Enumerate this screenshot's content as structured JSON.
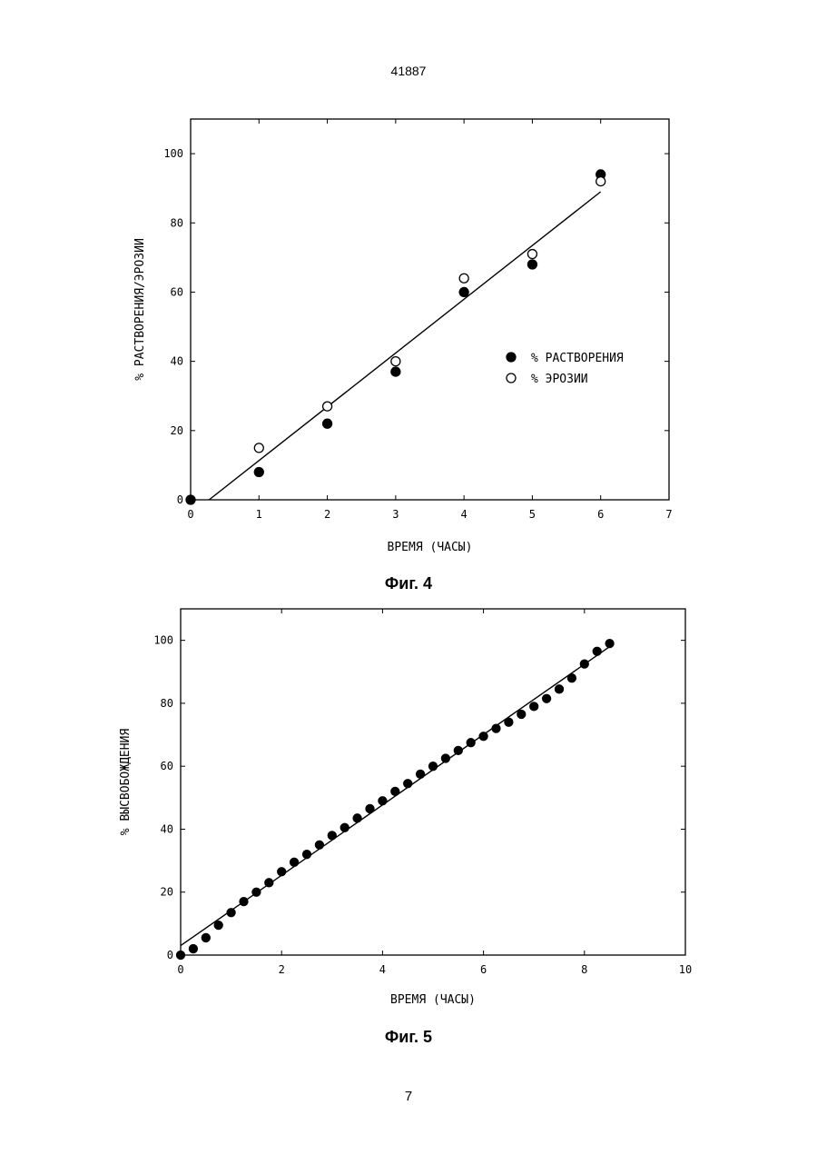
{
  "page": {
    "header": "41887",
    "number": "7"
  },
  "figures": [
    {
      "caption": "Фиг. 4"
    },
    {
      "caption": "Фиг. 5"
    }
  ],
  "chart_data": [
    {
      "type": "scatter",
      "title": "",
      "xlabel": "ВРЕМЯ (ЧАСЫ)",
      "ylabel": "% РАСТВОРЕНИЯ/ЭРОЗИИ",
      "xlim": [
        0,
        7
      ],
      "ylim": [
        0,
        110
      ],
      "x_ticks": [
        0,
        1,
        2,
        3,
        4,
        5,
        6,
        7
      ],
      "y_ticks": [
        0,
        20,
        40,
        60,
        80,
        100
      ],
      "x_tick_labels": [
        "0",
        "1",
        "2",
        "3",
        "4",
        "5",
        "6",
        "7"
      ],
      "y_tick_labels": [
        "0",
        "20",
        "40",
        "60",
        "80",
        "100"
      ],
      "grid": false,
      "legend_position": "right-middle",
      "series": [
        {
          "name": "% РАСТВОРЕНИЯ",
          "marker": "filled-circle",
          "x": [
            0,
            1,
            2,
            3,
            4,
            5,
            6
          ],
          "y": [
            0,
            8,
            22,
            37,
            60,
            68,
            94
          ]
        },
        {
          "name": "% ЭРОЗИИ",
          "marker": "open-circle",
          "x": [
            1,
            2,
            3,
            4,
            5,
            6
          ],
          "y": [
            15,
            27,
            40,
            64,
            71,
            92
          ]
        }
      ],
      "fit_line": {
        "x": [
          0.27,
          6
        ],
        "y": [
          0,
          89
        ]
      }
    },
    {
      "type": "scatter",
      "title": "",
      "xlabel": "ВРЕМЯ (ЧАСЫ)",
      "ylabel": "% ВЫСВОБОЖДЕНИЯ",
      "xlim": [
        0,
        10
      ],
      "ylim": [
        0,
        110
      ],
      "x_ticks": [
        0,
        2,
        4,
        6,
        8,
        10
      ],
      "y_ticks": [
        0,
        20,
        40,
        60,
        80,
        100
      ],
      "x_tick_labels": [
        "0",
        "2",
        "4",
        "6",
        "8",
        "10"
      ],
      "y_tick_labels": [
        "0",
        "20",
        "40",
        "60",
        "80",
        "100"
      ],
      "grid": false,
      "series": [
        {
          "name": "",
          "marker": "filled-circle",
          "x": [
            0,
            0.25,
            0.5,
            0.75,
            1,
            1.25,
            1.5,
            1.75,
            2,
            2.25,
            2.5,
            2.75,
            3,
            3.25,
            3.5,
            3.75,
            4,
            4.25,
            4.5,
            4.75,
            5,
            5.25,
            5.5,
            5.75,
            6,
            6.25,
            6.5,
            6.75,
            7,
            7.25,
            7.5,
            7.75,
            8,
            8.25,
            8.5
          ],
          "y": [
            0,
            2,
            5.5,
            9.5,
            13.5,
            17,
            20,
            23,
            26.5,
            29.5,
            32,
            35,
            38,
            40.5,
            43.5,
            46.5,
            49,
            52,
            54.5,
            57.5,
            60,
            62.5,
            65,
            67.5,
            69.5,
            72,
            74,
            76.5,
            79,
            81.5,
            84.5,
            88,
            92.5,
            96.5,
            99
          ]
        }
      ],
      "fit_line": {
        "x": [
          0,
          8.5
        ],
        "y": [
          3,
          98
        ]
      }
    }
  ]
}
